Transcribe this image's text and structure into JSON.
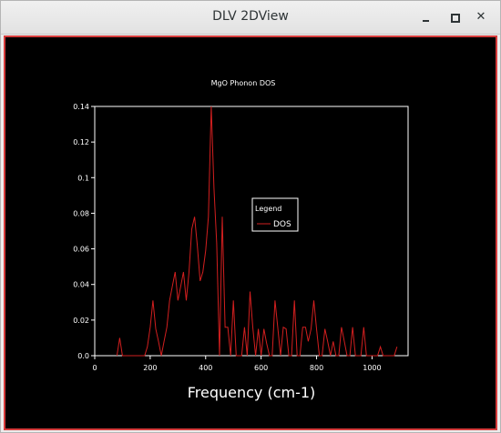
{
  "window": {
    "title": "DLV 2DView",
    "minimize_glyph": "–",
    "maximize_glyph": "□",
    "close_glyph": "✕"
  },
  "colors": {
    "plot_background": "#000000",
    "axis": "#ffffff",
    "series": "#d21f1f",
    "window_border": "#d63c3c"
  },
  "chart_data": {
    "type": "line",
    "title": "MgO Phonon DOS",
    "xlabel": "Frequency (cm-1)",
    "ylabel": "",
    "xlim": [
      0,
      1130
    ],
    "ylim": [
      0,
      0.14
    ],
    "xticks": [
      0,
      200,
      400,
      600,
      800,
      1000
    ],
    "xtick_labels": [
      "0",
      "200",
      "400",
      "600",
      "800",
      "1000"
    ],
    "yticks": [
      0,
      0.02,
      0.04,
      0.06,
      0.08,
      0.1,
      0.12,
      0.14
    ],
    "ytick_labels": [
      "0.0",
      "0.02",
      "0.04",
      "0.06",
      "0.08",
      "0.1",
      "0.12",
      "0.14"
    ],
    "legend": {
      "title": "Legend",
      "position": "center-right"
    },
    "series": [
      {
        "name": "DOS",
        "x": [
          80,
          90,
          100,
          180,
          190,
          200,
          210,
          220,
          230,
          240,
          250,
          260,
          270,
          280,
          290,
          300,
          310,
          320,
          330,
          340,
          350,
          360,
          370,
          380,
          390,
          400,
          410,
          420,
          430,
          440,
          450,
          460,
          470,
          480,
          490,
          500,
          510,
          520,
          530,
          540,
          550,
          560,
          570,
          580,
          590,
          600,
          610,
          620,
          630,
          640,
          650,
          660,
          670,
          680,
          690,
          700,
          710,
          720,
          730,
          740,
          750,
          760,
          770,
          780,
          790,
          800,
          810,
          820,
          830,
          840,
          850,
          860,
          870,
          880,
          890,
          900,
          910,
          920,
          930,
          940,
          950,
          960,
          970,
          980,
          990,
          1000,
          1010,
          1020,
          1030,
          1040,
          1050,
          1060,
          1070,
          1080,
          1090
        ],
        "y": [
          0,
          0.01,
          0,
          0,
          0.005,
          0.016,
          0.031,
          0.015,
          0.008,
          0,
          0.008,
          0.016,
          0.031,
          0.039,
          0.047,
          0.031,
          0.039,
          0.047,
          0.031,
          0.047,
          0.071,
          0.078,
          0.062,
          0.042,
          0.047,
          0.059,
          0.078,
          0.14,
          0.094,
          0.063,
          0,
          0.078,
          0.016,
          0.016,
          0,
          0.031,
          0,
          0,
          0,
          0.016,
          0,
          0.036,
          0.016,
          0,
          0.015,
          0,
          0.015,
          0.007,
          0,
          0,
          0.031,
          0.016,
          0,
          0.016,
          0.015,
          0,
          0,
          0.031,
          0,
          0,
          0.016,
          0.016,
          0.008,
          0.015,
          0.031,
          0.015,
          0,
          0,
          0.015,
          0.008,
          0,
          0.008,
          0,
          0,
          0.016,
          0.008,
          0,
          0,
          0.016,
          0,
          0,
          0,
          0.016,
          0,
          0,
          0,
          0,
          0,
          0.005,
          0,
          0,
          0,
          0,
          0,
          0.005
        ]
      }
    ]
  }
}
